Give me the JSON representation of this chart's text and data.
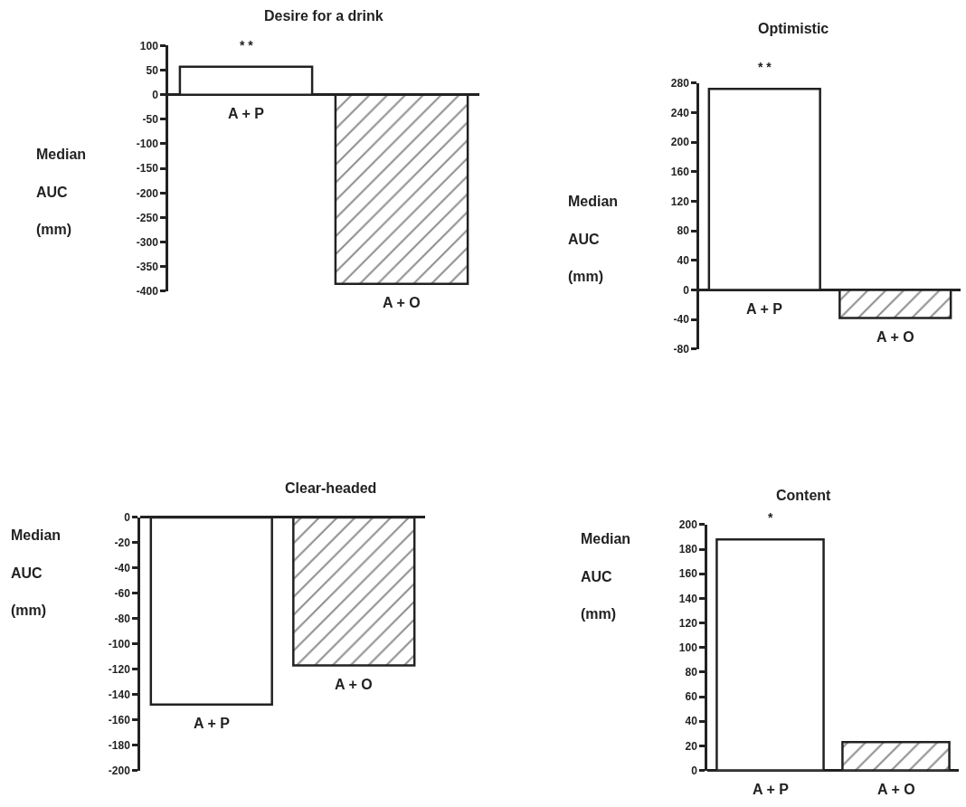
{
  "chart_data": [
    {
      "type": "bar",
      "title": "Desire for a drink",
      "ylabel": "Median\nAUC\n(mm)",
      "categories": [
        "A + P",
        "A + O"
      ],
      "values": [
        57,
        -385
      ],
      "colors": [
        "#ffffff",
        "#222222"
      ],
      "ylim": [
        -400,
        100
      ],
      "yticks": [
        -400,
        -350,
        -300,
        -250,
        -200,
        -150,
        -100,
        -50,
        0,
        50,
        100
      ],
      "annotations": [
        {
          "text": "* *",
          "x": "A + P",
          "y": 57
        }
      ]
    },
    {
      "type": "bar",
      "title": "Optimistic",
      "ylabel": "Median\nAUC\n(mm)",
      "categories": [
        "A + P",
        "A + O"
      ],
      "values": [
        272,
        -38
      ],
      "colors": [
        "#ffffff",
        "#222222"
      ],
      "ylim": [
        -80,
        280
      ],
      "yticks": [
        -80,
        -40,
        0,
        40,
        80,
        120,
        160,
        200,
        240,
        280
      ],
      "annotations": [
        {
          "text": "* *",
          "x": "A + P",
          "y": 272
        }
      ]
    },
    {
      "type": "bar",
      "title": "Clear-headed",
      "ylabel": "Median\nAUC\n(mm)",
      "categories": [
        "A + P",
        "A + O"
      ],
      "values": [
        -148,
        -117
      ],
      "colors": [
        "#ffffff",
        "#222222"
      ],
      "ylim": [
        -200,
        0
      ],
      "yticks": [
        -200,
        -180,
        -160,
        -140,
        -120,
        -100,
        -80,
        -60,
        -40,
        -20,
        0
      ]
    },
    {
      "type": "bar",
      "title": "Content",
      "ylabel": "Median\nAUC\n(mm)",
      "categories": [
        "A + P",
        "A + O"
      ],
      "values": [
        188,
        23
      ],
      "colors": [
        "#ffffff",
        "#222222"
      ],
      "ylim": [
        0,
        200
      ],
      "yticks": [
        0,
        20,
        40,
        60,
        80,
        100,
        120,
        140,
        160,
        180,
        200
      ],
      "annotations": [
        {
          "text": "*",
          "x": "A + P",
          "y": 188
        }
      ]
    }
  ]
}
